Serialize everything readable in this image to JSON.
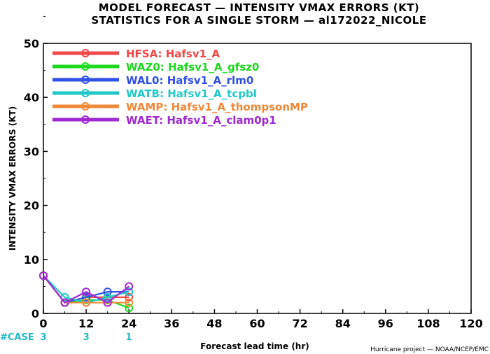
{
  "title_line1": "MODEL FORECAST — INTENSITY VMAX ERRORS (KT)",
  "title_line2": "STATISTICS FOR A SINGLE STORM — al172022_NICOLE",
  "credit": "Hurricane project — NOAA/NCEP/EMC",
  "case_label": "#CASE",
  "case_color": "#22b8c8",
  "case_counts": [
    {
      "x": 0,
      "n": "3"
    },
    {
      "x": 12,
      "n": "3"
    },
    {
      "x": 24,
      "n": "1"
    }
  ],
  "chart_data": {
    "type": "line",
    "title": "MODEL FORECAST — INTENSITY VMAX ERRORS (KT)",
    "subtitle": "STATISTICS FOR A SINGLE STORM — al172022_NICOLE",
    "xlabel": "Forecast lead time (hr)",
    "ylabel": "INTENSITY VMAX ERRORS (KT)",
    "xlim": [
      0,
      120
    ],
    "ylim": [
      0,
      50
    ],
    "xticks": [
      0,
      12,
      24,
      36,
      48,
      60,
      72,
      84,
      96,
      108,
      120
    ],
    "yticks": [
      0,
      10,
      20,
      30,
      40,
      50
    ],
    "grid": false,
    "legend_position": "top-left",
    "x": [
      0,
      6,
      12,
      18,
      24
    ],
    "series": [
      {
        "name": "HFSA: Hafsv1_A",
        "color": "#f04848",
        "values": [
          7,
          2,
          3,
          3,
          3
        ]
      },
      {
        "name": "WAZ0: Hafsv1_A_gfsz0",
        "color": "#1ed81e",
        "values": [
          7,
          2,
          2.5,
          2.5,
          1
        ]
      },
      {
        "name": "WAL0: Hafsv1_A_rlm0",
        "color": "#3050e8",
        "values": [
          7,
          2,
          3,
          4,
          4
        ]
      },
      {
        "name": "WATB: Hafsv1_A_tcpbl",
        "color": "#22c8c8",
        "values": [
          7,
          3,
          2,
          3,
          4
        ]
      },
      {
        "name": "WAMP: Hafsv1_A_thompsonMP",
        "color": "#f08838",
        "values": [
          7,
          2,
          2,
          2,
          2
        ]
      },
      {
        "name": "WAET: Hafsv1_A_clam0p1",
        "color": "#a028d0",
        "values": [
          7,
          2,
          4,
          2,
          5
        ]
      }
    ]
  }
}
